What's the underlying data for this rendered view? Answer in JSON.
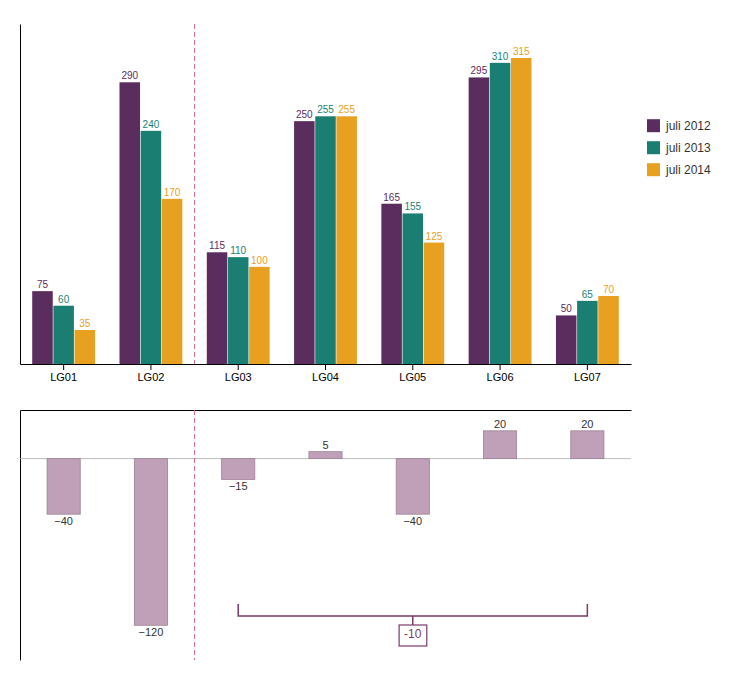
{
  "chart_data": [
    {
      "type": "bar",
      "categories": [
        "LG01",
        "LG02",
        "LG03",
        "LG04",
        "LG05",
        "LG06",
        "LG07"
      ],
      "series": [
        {
          "name": "juli 2012",
          "color": "#5b2d5e",
          "values": [
            75,
            290,
            115,
            250,
            165,
            295,
            50
          ]
        },
        {
          "name": "juli 2013",
          "color": "#1a7f72",
          "values": [
            60,
            240,
            110,
            255,
            155,
            310,
            65
          ]
        },
        {
          "name": "juli 2014",
          "color": "#e8a020",
          "values": [
            35,
            170,
            100,
            255,
            125,
            315,
            70
          ]
        }
      ],
      "ylim": [
        0,
        350
      ],
      "tick_labels": "x",
      "data_labels": true,
      "grid": false,
      "legend": "right",
      "annotations": [
        {
          "type": "divider",
          "after": "LG02",
          "color": "#cc6688"
        }
      ]
    },
    {
      "type": "bar",
      "categories": [
        null,
        null,
        null,
        null,
        null,
        null,
        null
      ],
      "values": [
        -40,
        -120,
        -15,
        5,
        -40,
        20,
        20
      ],
      "color": "#c0a0b8",
      "ylim": [
        -145,
        35
      ],
      "tick_labels": false,
      "data_labels": true,
      "grid": false,
      "annotations": [
        {
          "type": "divider",
          "after": "LG02",
          "color": "#cc6688"
        },
        {
          "type": "bracket",
          "text": "-10",
          "from": "LG03",
          "to": "LG07",
          "color": "#7a3a6a"
        }
      ]
    }
  ]
}
